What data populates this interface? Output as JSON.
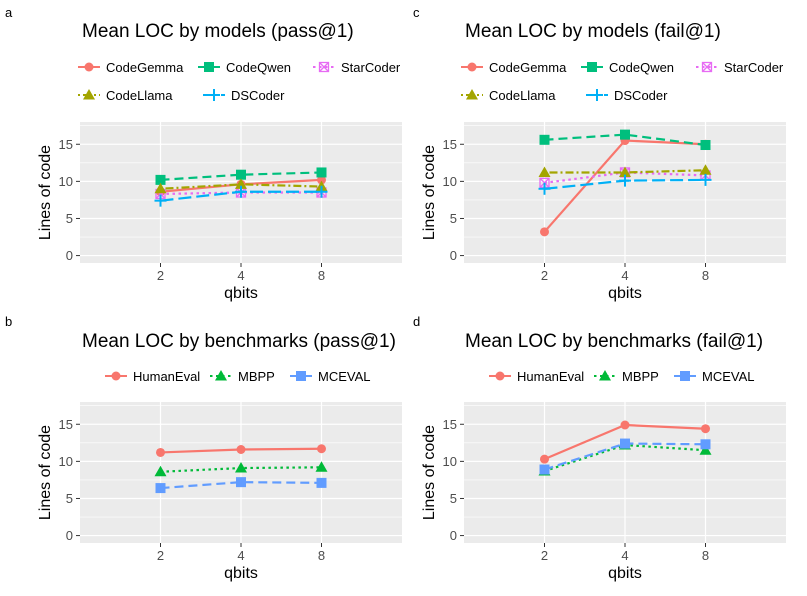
{
  "chart_data": [
    {
      "id": "a",
      "type": "line",
      "title": "Mean LOC by models (pass@1)",
      "xlabel": "qbits",
      "ylabel": "Lines of code",
      "categories": [
        "2",
        "4",
        "8"
      ],
      "yticks": [
        "0",
        "5",
        "10",
        "15"
      ],
      "ylim": [
        -1,
        18
      ],
      "series": [
        {
          "name": "CodeGemma",
          "values": [
            8.6,
            9.6,
            10.2
          ],
          "color": "#f8766d",
          "marker": "circle",
          "dash": "solid"
        },
        {
          "name": "CodeQwen",
          "values": [
            10.2,
            10.9,
            11.2
          ],
          "color": "#00bf7d",
          "marker": "square",
          "dash": "dashed"
        },
        {
          "name": "StarCoder",
          "values": [
            8.3,
            8.5,
            8.5
          ],
          "color": "#e76bf3",
          "marker": "boxx",
          "dash": "dotted"
        },
        {
          "name": "CodeLlama",
          "values": [
            9.0,
            9.6,
            9.3
          ],
          "color": "#a3a500",
          "marker": "triangle",
          "dash": "dotdash"
        },
        {
          "name": "DSCoder",
          "values": [
            7.4,
            8.6,
            8.6
          ],
          "color": "#00b0f6",
          "marker": "plus",
          "dash": "longdash"
        }
      ]
    },
    {
      "id": "c",
      "type": "line",
      "title": "Mean LOC by models (fail@1)",
      "xlabel": "qbits",
      "ylabel": "Lines of code",
      "categories": [
        "2",
        "4",
        "8"
      ],
      "yticks": [
        "0",
        "5",
        "10",
        "15"
      ],
      "ylim": [
        -1,
        18
      ],
      "series": [
        {
          "name": "CodeGemma",
          "values": [
            3.2,
            15.5,
            15.0
          ],
          "color": "#f8766d",
          "marker": "circle",
          "dash": "solid"
        },
        {
          "name": "CodeQwen",
          "values": [
            15.6,
            16.3,
            14.9
          ],
          "color": "#00bf7d",
          "marker": "square",
          "dash": "dashed"
        },
        {
          "name": "StarCoder",
          "values": [
            9.8,
            11.2,
            10.8
          ],
          "color": "#e76bf3",
          "marker": "boxx",
          "dash": "dotted"
        },
        {
          "name": "CodeLlama",
          "values": [
            11.2,
            11.2,
            11.5
          ],
          "color": "#a3a500",
          "marker": "triangle",
          "dash": "dotdash"
        },
        {
          "name": "DSCoder",
          "values": [
            9.0,
            10.1,
            10.2
          ],
          "color": "#00b0f6",
          "marker": "plus",
          "dash": "longdash"
        }
      ]
    },
    {
      "id": "b",
      "type": "line",
      "title": "Mean LOC by benchmarks (pass@1)",
      "xlabel": "qbits",
      "ylabel": "Lines of code",
      "categories": [
        "2",
        "4",
        "8"
      ],
      "yticks": [
        "0",
        "5",
        "10",
        "15"
      ],
      "ylim": [
        -1,
        18
      ],
      "series": [
        {
          "name": "HumanEval",
          "values": [
            11.2,
            11.6,
            11.7
          ],
          "color": "#f8766d",
          "marker": "circle",
          "dash": "solid"
        },
        {
          "name": "MBPP",
          "values": [
            8.6,
            9.1,
            9.2
          ],
          "color": "#00ba38",
          "marker": "triangle",
          "dash": "dotted"
        },
        {
          "name": "MCEVAL",
          "values": [
            6.4,
            7.2,
            7.1
          ],
          "color": "#619cff",
          "marker": "square",
          "dash": "dashed"
        }
      ]
    },
    {
      "id": "d",
      "type": "line",
      "title": "Mean LOC by benchmarks (fail@1)",
      "xlabel": "qbits",
      "ylabel": "Lines of code",
      "categories": [
        "2",
        "4",
        "8"
      ],
      "yticks": [
        "0",
        "5",
        "10",
        "15"
      ],
      "ylim": [
        -1,
        18
      ],
      "series": [
        {
          "name": "HumanEval",
          "values": [
            10.3,
            14.9,
            14.4
          ],
          "color": "#f8766d",
          "marker": "circle",
          "dash": "solid"
        },
        {
          "name": "MBPP",
          "values": [
            8.7,
            12.2,
            11.5
          ],
          "color": "#00ba38",
          "marker": "triangle",
          "dash": "dotted"
        },
        {
          "name": "MCEVAL",
          "values": [
            8.9,
            12.4,
            12.3
          ],
          "color": "#619cff",
          "marker": "square",
          "dash": "dashed"
        }
      ]
    }
  ]
}
